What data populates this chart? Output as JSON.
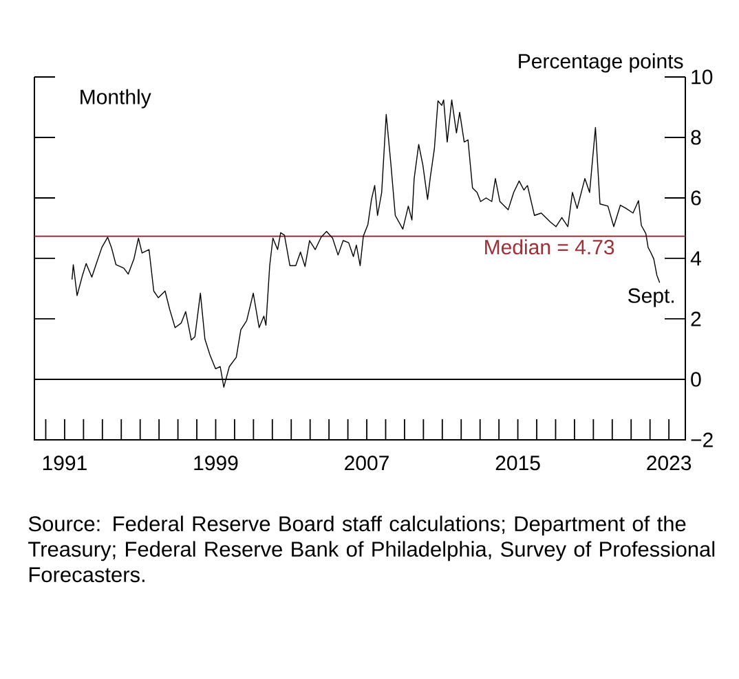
{
  "chart_data": {
    "type": "line",
    "ylabel": "Percentage points",
    "color": "#000000",
    "line_style": "solid",
    "marker": "none",
    "x": [
      1991.39,
      1991.46,
      1991.66,
      1991.95,
      1992.14,
      1992.44,
      1992.68,
      1992.97,
      1993.28,
      1993.48,
      1993.72,
      1994.13,
      1994.37,
      1994.67,
      1994.91,
      1995.1,
      1995.47,
      1995.72,
      1995.96,
      1996.32,
      1996.56,
      1996.85,
      1997.17,
      1997.41,
      1997.71,
      1997.9,
      1998.19,
      1998.43,
      1998.7,
      1998.99,
      1999.24,
      1999.43,
      1999.72,
      2000.09,
      2000.33,
      2000.64,
      2000.99,
      2001.3,
      2001.55,
      2001.66,
      2001.86,
      2002.03,
      2002.28,
      2002.44,
      2002.64,
      2002.93,
      2003.24,
      2003.49,
      2003.73,
      2003.97,
      2004.27,
      2004.58,
      2004.87,
      2005.19,
      2005.48,
      2005.75,
      2006.04,
      2006.29,
      2006.45,
      2006.65,
      2006.82,
      2007.06,
      2007.25,
      2007.42,
      2007.57,
      2007.79,
      2008.03,
      2008.27,
      2008.51,
      2008.91,
      2009.2,
      2009.39,
      2009.51,
      2009.75,
      2009.97,
      2010.22,
      2010.37,
      2010.58,
      2010.77,
      2010.97,
      2011.07,
      2011.26,
      2011.5,
      2011.75,
      2011.92,
      2012.16,
      2012.36,
      2012.6,
      2012.84,
      2013.03,
      2013.32,
      2013.62,
      2013.81,
      2014.05,
      2014.49,
      2014.78,
      2015.07,
      2015.32,
      2015.51,
      2015.88,
      2016.24,
      2016.73,
      2017.02,
      2017.33,
      2017.65,
      2017.89,
      2018.14,
      2018.55,
      2018.8,
      2019.11,
      2019.35,
      2019.77,
      2020.08,
      2020.43,
      2020.74,
      2021.1,
      2021.39,
      2021.54,
      2021.78,
      2021.9,
      2022.03,
      2022.2,
      2022.36,
      2022.51
    ],
    "values": [
      3.3,
      3.79,
      2.77,
      3.45,
      3.83,
      3.38,
      3.83,
      4.36,
      4.7,
      4.36,
      3.79,
      3.68,
      3.48,
      3.98,
      4.67,
      4.18,
      4.29,
      2.92,
      2.7,
      2.92,
      2.32,
      1.71,
      1.86,
      2.24,
      1.3,
      1.41,
      2.85,
      1.33,
      0.8,
      0.35,
      0.42,
      -0.26,
      0.42,
      0.73,
      1.64,
      1.94,
      2.85,
      1.71,
      2.09,
      1.79,
      3.76,
      4.67,
      4.29,
      4.85,
      4.77,
      3.76,
      3.76,
      4.21,
      3.73,
      4.59,
      4.29,
      4.7,
      4.89,
      4.67,
      4.11,
      4.59,
      4.52,
      4.06,
      4.44,
      3.76,
      4.74,
      5.12,
      5.95,
      6.41,
      5.42,
      6.18,
      8.76,
      7.17,
      5.42,
      4.97,
      5.73,
      5.27,
      6.64,
      7.77,
      7.09,
      5.95,
      6.71,
      7.62,
      9.21,
      9.06,
      9.24,
      7.85,
      9.24,
      8.15,
      8.83,
      7.85,
      7.92,
      6.33,
      6.18,
      5.88,
      6.0,
      5.88,
      6.64,
      5.88,
      5.61,
      6.18,
      6.56,
      6.26,
      6.41,
      5.42,
      5.5,
      5.2,
      5.05,
      5.35,
      5.05,
      6.18,
      5.65,
      6.64,
      6.18,
      8.33,
      5.8,
      5.73,
      5.05,
      5.76,
      5.65,
      5.5,
      5.91,
      5.09,
      4.82,
      4.36,
      4.21,
      3.98,
      3.45,
      3.2
    ],
    "xlim": [
      1989.4,
      2023.87
    ],
    "ylim": [
      -2,
      10
    ],
    "xticks": [
      {
        "value": 1990,
        "label": null
      },
      1991,
      {
        "value": 1992,
        "label": null
      },
      {
        "value": 1993,
        "label": null
      },
      {
        "value": 1994,
        "label": null
      },
      {
        "value": 1995,
        "label": null
      },
      {
        "value": 1996,
        "label": null
      },
      {
        "value": 1997,
        "label": null
      },
      {
        "value": 1998,
        "label": null
      },
      1999,
      {
        "value": 2000,
        "label": null
      },
      {
        "value": 2001,
        "label": null
      },
      {
        "value": 2002,
        "label": null
      },
      {
        "value": 2003,
        "label": null
      },
      {
        "value": 2004,
        "label": null
      },
      {
        "value": 2005,
        "label": null
      },
      {
        "value": 2006,
        "label": null
      },
      2007,
      {
        "value": 2008,
        "label": null
      },
      {
        "value": 2009,
        "label": null
      },
      {
        "value": 2010,
        "label": null
      },
      {
        "value": 2011,
        "label": null
      },
      {
        "value": 2012,
        "label": null
      },
      {
        "value": 2013,
        "label": null
      },
      {
        "value": 2014,
        "label": null
      },
      2015,
      {
        "value": 2016,
        "label": null
      },
      {
        "value": 2017,
        "label": null
      },
      {
        "value": 2018,
        "label": null
      },
      {
        "value": 2019,
        "label": null
      },
      {
        "value": 2020,
        "label": null
      },
      {
        "value": 2021,
        "label": null
      },
      {
        "value": 2022,
        "label": null
      },
      2023
    ],
    "yticks": [
      {
        "value": -2,
        "label": "−2"
      },
      0,
      2,
      4,
      6,
      8,
      10
    ],
    "ref_lines": [
      {
        "axis": "y",
        "value": 4.73,
        "label": "Median = 4.73",
        "color": "#9e3039"
      },
      {
        "axis": "y",
        "value": 0,
        "color": "#000000"
      }
    ],
    "annotations": [
      "Monthly",
      {
        "text": "Sept.",
        "x": 2022.51,
        "y": 3.2
      },
      "Source: Federal Reserve Board staff calculations; Department of the Treasury; Federal Reserve Bank of Philadelphia, Survey of Professional Forecasters."
    ]
  }
}
